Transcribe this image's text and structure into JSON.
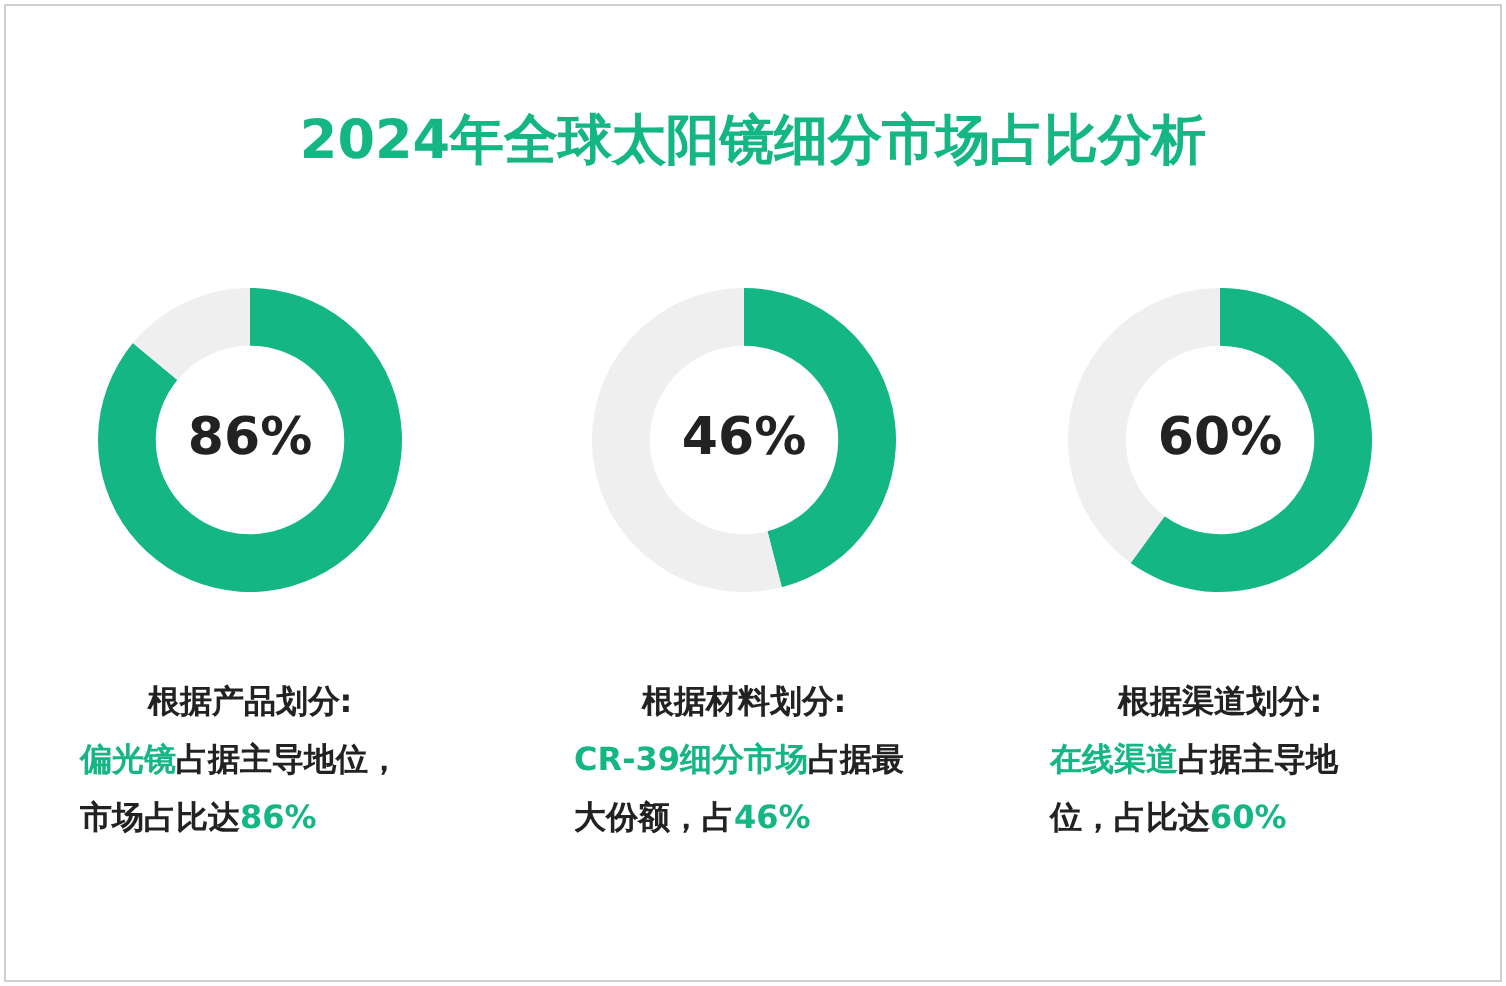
{
  "chart_data": [
    {
      "type": "donut",
      "title": "2024年全球太阳镜细分市场占比分析",
      "categories": [
        null,
        null
      ],
      "values": [
        86,
        14
      ],
      "colors": [
        "#14b684",
        "#efefef"
      ],
      "value_labels": [
        "86%",
        null
      ],
      "legend": false,
      "annotations": [
        "根据产品划分:",
        "偏光镜",
        "占据主导地位，市场占比达",
        "86%"
      ]
    },
    {
      "type": "donut",
      "categories": [
        null,
        null
      ],
      "values": [
        46,
        54
      ],
      "colors": [
        "#14b684",
        "#efefef"
      ],
      "value_labels": [
        "46%",
        null
      ],
      "legend": false,
      "annotations": [
        "根据材料划分:",
        "CR-39细分市场",
        "占据最大份额，占",
        "46%"
      ]
    },
    {
      "type": "donut",
      "categories": [
        null,
        null
      ],
      "values": [
        60,
        40
      ],
      "colors": [
        "#14b684",
        "#efefef"
      ],
      "value_labels": [
        "60%",
        null
      ],
      "legend": false,
      "annotations": [
        "根据渠道划分:",
        "在线渠道",
        "占据主导地位，占比达",
        "60%"
      ]
    }
  ]
}
